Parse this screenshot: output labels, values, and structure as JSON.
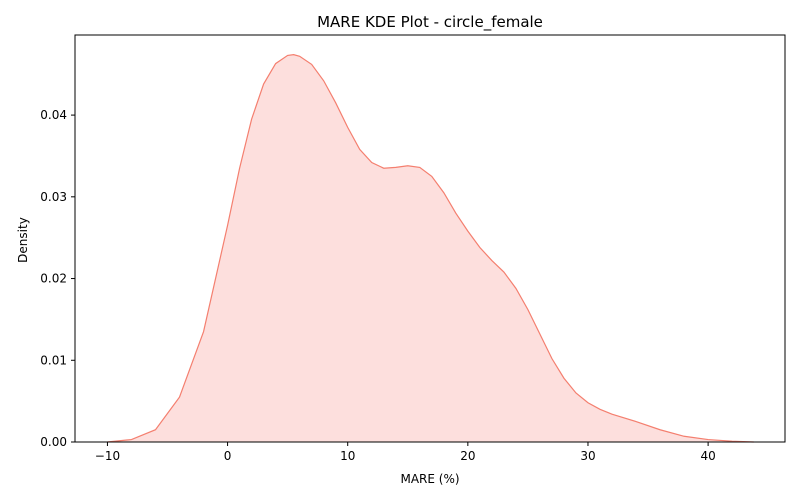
{
  "chart_data": {
    "type": "area",
    "title": "MARE KDE Plot - circle_female",
    "xlabel": "MARE (%)",
    "ylabel": "Density",
    "xlim": [
      -12.7,
      46.4
    ],
    "ylim": [
      0,
      0.0498
    ],
    "xticks": [
      -10,
      0,
      10,
      20,
      30,
      40
    ],
    "yticks": [
      0.0,
      0.01,
      0.02,
      0.03,
      0.04
    ],
    "ytick_labels": [
      "0.00",
      "0.01",
      "0.02",
      "0.03",
      "0.04"
    ],
    "grid": false,
    "series": [
      {
        "fill_color": "#fddfdd",
        "line_color": "#f47f6f",
        "x": [
          -10,
          -8,
          -6,
          -4,
          -2,
          0,
          1,
          2,
          3,
          4,
          5,
          5.5,
          6,
          7,
          8,
          9,
          10,
          11,
          12,
          13,
          14,
          15,
          16,
          17,
          18,
          19,
          20,
          21,
          22,
          23,
          24,
          25,
          26,
          27,
          28,
          29,
          30,
          31,
          32,
          34,
          36,
          38,
          40,
          42,
          43.8
        ],
        "y": [
          0.0,
          0.0003,
          0.0015,
          0.0055,
          0.0135,
          0.0265,
          0.0335,
          0.0395,
          0.0438,
          0.0463,
          0.0473,
          0.0474,
          0.0472,
          0.0462,
          0.0442,
          0.0415,
          0.0385,
          0.0358,
          0.0342,
          0.0335,
          0.0336,
          0.0338,
          0.0336,
          0.0325,
          0.0305,
          0.028,
          0.0258,
          0.0238,
          0.0222,
          0.0208,
          0.0188,
          0.0162,
          0.0132,
          0.0102,
          0.0078,
          0.006,
          0.0048,
          0.004,
          0.0034,
          0.0025,
          0.0015,
          0.0007,
          0.0003,
          0.0001,
          0.0
        ]
      }
    ]
  }
}
